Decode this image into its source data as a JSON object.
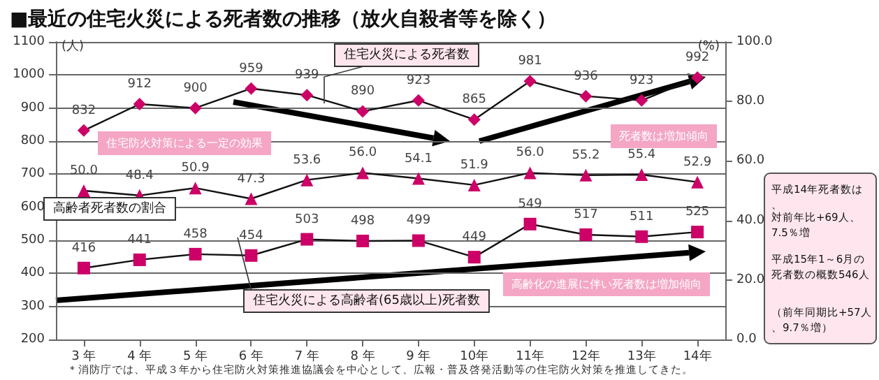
{
  "chart_data": {
    "type": "line",
    "title": "■最近の住宅火災による死者数の推移（放火自殺者等を除く）",
    "ylabel": "(人)",
    "y2label": "(%)",
    "categories": [
      "3 年",
      "4 年",
      "5 年",
      "6 年",
      "7 年",
      "8 年",
      "9 年",
      "10年",
      "11年",
      "12年",
      "13年",
      "14年"
    ],
    "series": [
      {
        "name": "住宅火災による死者数",
        "color": "#cc0066",
        "marker": "diamond",
        "values": [
          832,
          912,
          900,
          959,
          939,
          890,
          923,
          865,
          981,
          936,
          923,
          992
        ],
        "value_labels": [
          "832",
          "912",
          "900",
          "959",
          "939",
          "890",
          "923",
          "865",
          "981",
          "936",
          "923",
          "992"
        ]
      },
      {
        "name": "高齢者死者数の割合",
        "color": "#cc0066",
        "marker": "triangle",
        "axis": "y2",
        "values": [
          50.0,
          48.4,
          50.9,
          47.3,
          53.6,
          56.0,
          54.1,
          51.9,
          56.0,
          55.2,
          55.4,
          52.9
        ],
        "value_labels": [
          "50.0",
          "48.4",
          "50.9",
          "47.3",
          "53.6",
          "56.0",
          "54.1",
          "51.9",
          "56.0",
          "55.2",
          "55.4",
          "52.9"
        ]
      },
      {
        "name": "住宅火災による高齢者(65歳以上)死者数",
        "color": "#cc0066",
        "marker": "square",
        "values": [
          416,
          441,
          458,
          454,
          503,
          498,
          499,
          449,
          549,
          517,
          511,
          525
        ],
        "value_labels": [
          "416",
          "441",
          "458",
          "454",
          "503",
          "498",
          "499",
          "449",
          "549",
          "517",
          "511",
          "525"
        ]
      }
    ],
    "ylim": [
      200,
      1100
    ],
    "yticks": [
      200,
      300,
      400,
      500,
      600,
      700,
      800,
      900,
      1000,
      1100
    ],
    "y2lim": [
      0,
      100
    ],
    "y2ticks": [
      {
        "value": 0,
        "label": "0.0"
      },
      {
        "value": 20,
        "label": "20.0"
      },
      {
        "value": 40,
        "label": "40.0"
      },
      {
        "value": 60,
        "label": "60.0"
      },
      {
        "value": 80,
        "label": "80.0"
      },
      {
        "value": 100,
        "label": "100.0"
      }
    ],
    "grid": "y",
    "annotations": [
      "住宅防火対策による一定の効果",
      "死者数は増加傾向",
      "高齢化の進展に伴い死者数は増加傾向",
      "平成14年死者数は、",
      "対前年比+69人、7.5％増",
      "平成15年1～6月の死者数の概数546人",
      "（前年同期比+57人、9.7％増）",
      "＊消防庁では、平成３年から住宅防火対策推進協議会を中心として、広報・普及啓発活動等の住宅防火対策を推進してきた。"
    ]
  }
}
